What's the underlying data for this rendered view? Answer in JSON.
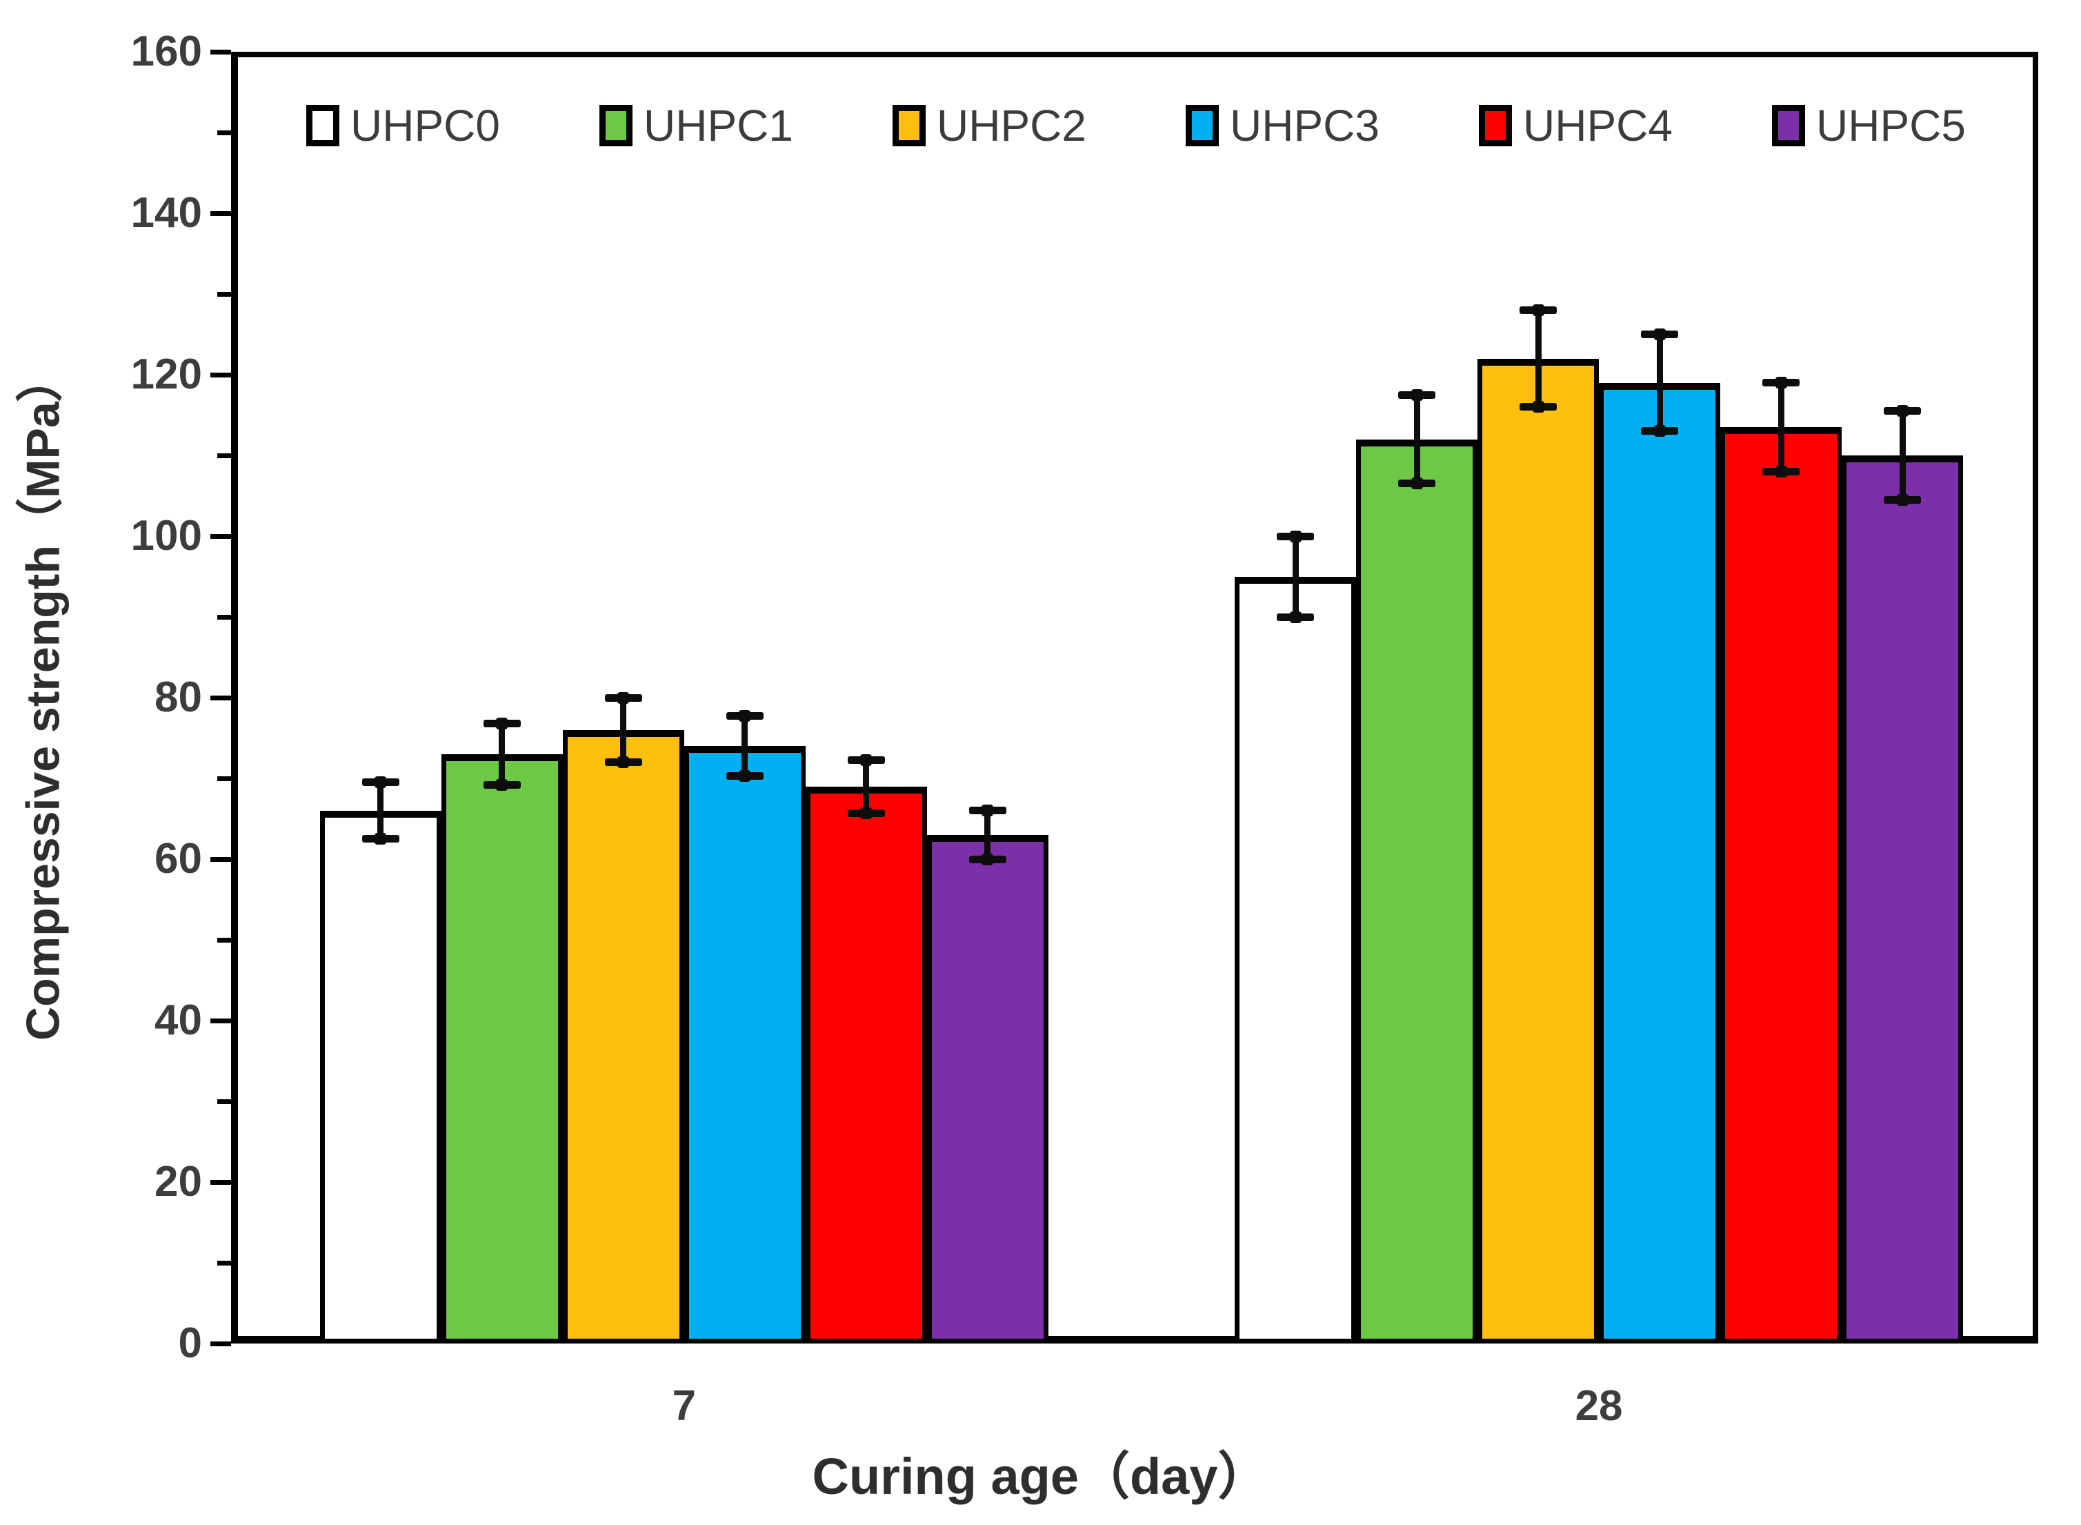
{
  "chart_data": {
    "type": "bar",
    "title": "",
    "xlabel": "Curing age（day）",
    "ylabel": "Compressive strength（MPa）",
    "categories": [
      "7",
      "28"
    ],
    "y_axis": {
      "min": 0,
      "max": 160,
      "major_step": 20,
      "minor_step": 10,
      "tick_labels": [
        "0",
        "20",
        "40",
        "60",
        "80",
        "100",
        "120",
        "140",
        "160"
      ]
    },
    "grid": false,
    "legend_position": "top-inside",
    "bar_border_color": "#000000",
    "error_bar_color": "#0d0d0d",
    "series": [
      {
        "name": "UHPC0",
        "color": "#FFFFFF",
        "values": [
          66,
          95
        ],
        "errors": [
          3.5,
          5
        ]
      },
      {
        "name": "UHPC1",
        "color": "#6DC846",
        "values": [
          73,
          112
        ],
        "errors": [
          3.8,
          5.5
        ]
      },
      {
        "name": "UHPC2",
        "color": "#FDC00E",
        "values": [
          76,
          122
        ],
        "errors": [
          4,
          6
        ]
      },
      {
        "name": "UHPC3",
        "color": "#00B0F0",
        "values": [
          74,
          119
        ],
        "errors": [
          3.7,
          6
        ]
      },
      {
        "name": "UHPC4",
        "color": "#FE0000",
        "values": [
          69,
          113.5
        ],
        "errors": [
          3.3,
          5.5
        ]
      },
      {
        "name": "UHPC5",
        "color": "#7B2FA8",
        "values": [
          63,
          110
        ],
        "errors": [
          3,
          5.5
        ]
      }
    ]
  }
}
